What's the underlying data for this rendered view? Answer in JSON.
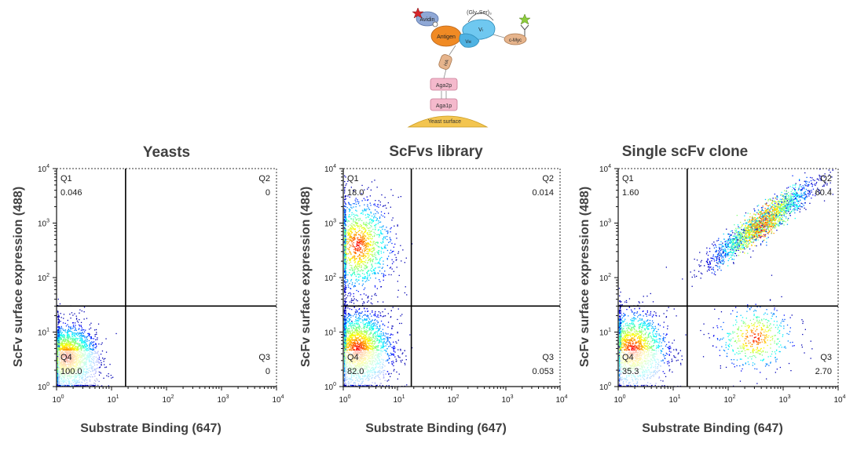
{
  "diagram": {
    "labels": {
      "avidin": "Avidin",
      "antigen": "Antigen",
      "linker": "(Gly₄Ser)₃",
      "vl": "Vₗ",
      "vh": "Vʜ",
      "cmyc": "c-Myc",
      "ha": "HA",
      "aga2p": "Aga2p",
      "aga1p": "Aga1p",
      "surface": "Yeast surface"
    },
    "colors": {
      "avidin": "#8fa8d6",
      "antigen": "#f08a24",
      "scfv": "#6fc8f0",
      "cmyc": "#e6b48c",
      "ha": "#e6b48c",
      "aga": "#f4b9cc",
      "surface": "#f3c550"
    }
  },
  "chart_data": [
    {
      "type": "scatter",
      "title": "Yeasts",
      "xlabel": "Substrate Binding (647)",
      "ylabel": "ScFv surface expression (488)",
      "xscale": "log",
      "yscale": "log",
      "xlim": [
        1,
        10000
      ],
      "ylim": [
        1,
        10000
      ],
      "xticks": [
        "10^0",
        "10^1",
        "10^2",
        "10^3",
        "10^4"
      ],
      "yticks": [
        "10^0",
        "10^1",
        "10^2",
        "10^3",
        "10^4"
      ],
      "gate": {
        "x": 18,
        "y": 30
      },
      "quadrants": [
        {
          "name": "Q1",
          "value": "0.046",
          "corner": "top-left"
        },
        {
          "name": "Q2",
          "value": "0",
          "corner": "top-right"
        },
        {
          "name": "Q3",
          "value": "0",
          "corner": "bottom-right"
        },
        {
          "name": "Q4",
          "value": "100.0",
          "corner": "bottom-left"
        }
      ],
      "populations": [
        {
          "x_center": 1.5,
          "y_center": 3.5,
          "x_spread": 0.28,
          "y_spread": 0.3,
          "count": 2600
        }
      ]
    },
    {
      "type": "scatter",
      "title": "ScFvs library",
      "xlabel": "Substrate Binding (647)",
      "ylabel": "ScFv surface expression (488)",
      "xscale": "log",
      "yscale": "log",
      "xlim": [
        1,
        10000
      ],
      "ylim": [
        1,
        10000
      ],
      "xticks": [
        "10^0",
        "10^1",
        "10^2",
        "10^3",
        "10^4"
      ],
      "yticks": [
        "10^0",
        "10^1",
        "10^2",
        "10^3",
        "10^4"
      ],
      "gate": {
        "x": 18,
        "y": 30
      },
      "quadrants": [
        {
          "name": "Q1",
          "value": "18.0",
          "corner": "top-left"
        },
        {
          "name": "Q2",
          "value": "0.014",
          "corner": "top-right"
        },
        {
          "name": "Q3",
          "value": "0.053",
          "corner": "bottom-right"
        },
        {
          "name": "Q4",
          "value": "82.0",
          "corner": "bottom-left"
        }
      ],
      "populations": [
        {
          "x_center": 1.8,
          "y_center": 5,
          "x_spread": 0.32,
          "y_spread": 0.35,
          "count": 2600
        },
        {
          "x_center": 1.8,
          "y_center": 400,
          "x_spread": 0.32,
          "y_spread": 0.42,
          "count": 1400
        }
      ]
    },
    {
      "type": "scatter",
      "title": "Single scFv clone",
      "xlabel": "Substrate Binding (647)",
      "ylabel": "ScFv surface expression (488)",
      "xscale": "log",
      "yscale": "log",
      "xlim": [
        1,
        10000
      ],
      "ylim": [
        1,
        10000
      ],
      "xticks": [
        "10^0",
        "10^1",
        "10^2",
        "10^3",
        "10^4"
      ],
      "yticks": [
        "10^0",
        "10^1",
        "10^2",
        "10^3",
        "10^4"
      ],
      "gate": {
        "x": 18,
        "y": 30
      },
      "quadrants": [
        {
          "name": "Q1",
          "value": "1.60",
          "corner": "top-left"
        },
        {
          "name": "Q2",
          "value": "60.4",
          "corner": "top-right"
        },
        {
          "name": "Q3",
          "value": "2.70",
          "corner": "bottom-right"
        },
        {
          "name": "Q4",
          "value": "35.3",
          "corner": "bottom-left"
        }
      ],
      "populations": [
        {
          "x_center": 1.8,
          "y_center": 5,
          "x_spread": 0.32,
          "y_spread": 0.35,
          "count": 1800
        },
        {
          "x_center": 400,
          "y_center": 1000,
          "x_spread": 0.3,
          "y_spread": 0.12,
          "count": 2200,
          "diagonal": true
        },
        {
          "x_center": 300,
          "y_center": 8,
          "x_spread": 0.35,
          "y_spread": 0.3,
          "count": 500
        }
      ]
    }
  ]
}
